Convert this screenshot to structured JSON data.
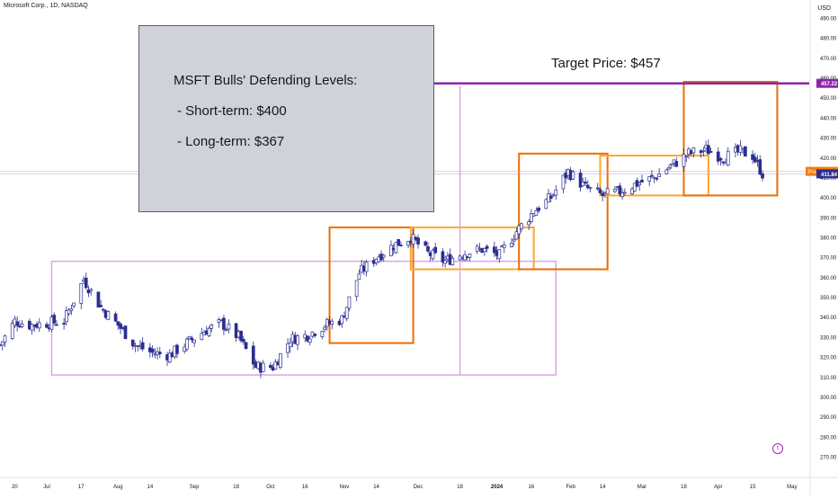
{
  "header": {
    "title": "Microsoft Corp., 1D, NASDAQ",
    "currency": "USD"
  },
  "note": {
    "title": "MSFT Bulls' Defending Levels:",
    "line1": "- Short-term: $400",
    "line2": "- Long-term: $367"
  },
  "target": {
    "label": "Target Price: $457"
  },
  "colors": {
    "up": "#ffffff",
    "down": "#2a2e8f",
    "wick": "#2a2e8f",
    "target_line": "#8e24aa",
    "box_dark_orange": "#ef6c00",
    "box_light_orange": "#ffa726",
    "box_pink": "#d9a6e6",
    "price_line_orange": "#f6a85c",
    "price_line_purple": "#b39ddb",
    "axis_text": "#131722"
  },
  "chart_data": {
    "type": "candlestick",
    "y_axis": {
      "ticks": [
        270,
        280,
        290,
        300,
        310,
        320,
        330,
        340,
        350,
        360,
        370,
        380,
        390,
        400,
        410,
        420,
        430,
        440,
        450,
        460,
        470,
        480,
        490
      ],
      "tick_labels": [
        "270.00",
        "280.00",
        "290.00",
        "300.00",
        "310.00",
        "320.00",
        "330.00",
        "340.00",
        "350.00",
        "360.00",
        "370.00",
        "380.00",
        "390.00",
        "400.00",
        "410.00",
        "420.00",
        "430.00",
        "440.00",
        "450.00",
        "460.00",
        "470.00",
        "480.00",
        "490.00"
      ],
      "range": [
        265,
        495
      ]
    },
    "x_axis": {
      "labels": [
        {
          "text": "20",
          "date": "2023-06-20"
        },
        {
          "text": "Jul",
          "date": "2023-07-03"
        },
        {
          "text": "17",
          "date": "2023-07-17"
        },
        {
          "text": "Aug",
          "date": "2023-08-01"
        },
        {
          "text": "14",
          "date": "2023-08-14"
        },
        {
          "text": "Sep",
          "date": "2023-09-01"
        },
        {
          "text": "18",
          "date": "2023-09-18"
        },
        {
          "text": "Oct",
          "date": "2023-10-02"
        },
        {
          "text": "16",
          "date": "2023-10-16"
        },
        {
          "text": "Nov",
          "date": "2023-11-01"
        },
        {
          "text": "14",
          "date": "2023-11-14"
        },
        {
          "text": "Dec",
          "date": "2023-12-01"
        },
        {
          "text": "18",
          "date": "2023-12-18"
        },
        {
          "text": "2024",
          "date": "2024-01-02"
        },
        {
          "text": "16",
          "date": "2024-01-16"
        },
        {
          "text": "Feb",
          "date": "2024-02-01"
        },
        {
          "text": "14",
          "date": "2024-02-14"
        },
        {
          "text": "Mar",
          "date": "2024-03-01"
        },
        {
          "text": "18",
          "date": "2024-03-18"
        },
        {
          "text": "Apr",
          "date": "2024-04-01"
        },
        {
          "text": "15",
          "date": "2024-04-15"
        },
        {
          "text": "May",
          "date": "2024-05-01"
        }
      ],
      "range": [
        "2023-06-14",
        "2024-05-08"
      ]
    },
    "close_path": [
      [
        "2023-06-14",
        326
      ],
      [
        "2023-06-20",
        338
      ],
      [
        "2023-06-26",
        336
      ],
      [
        "2023-07-03",
        337
      ],
      [
        "2023-07-10",
        338
      ],
      [
        "2023-07-18",
        359
      ],
      [
        "2023-07-25",
        345
      ],
      [
        "2023-08-01",
        336
      ],
      [
        "2023-08-08",
        326
      ],
      [
        "2023-08-15",
        322
      ],
      [
        "2023-08-22",
        321
      ],
      [
        "2023-08-29",
        327
      ],
      [
        "2023-09-05",
        333
      ],
      [
        "2023-09-12",
        337
      ],
      [
        "2023-09-19",
        330
      ],
      [
        "2023-09-26",
        315
      ],
      [
        "2023-10-03",
        315
      ],
      [
        "2023-10-10",
        329
      ],
      [
        "2023-10-17",
        331
      ],
      [
        "2023-10-24",
        336
      ],
      [
        "2023-10-31",
        339
      ],
      [
        "2023-11-07",
        362
      ],
      [
        "2023-11-14",
        370
      ],
      [
        "2023-11-21",
        376
      ],
      [
        "2023-11-28",
        380
      ],
      [
        "2023-12-05",
        372
      ],
      [
        "2023-12-12",
        368
      ],
      [
        "2023-12-19",
        372
      ],
      [
        "2023-12-27",
        374
      ],
      [
        "2024-01-03",
        371
      ],
      [
        "2024-01-10",
        383
      ],
      [
        "2024-01-17",
        393
      ],
      [
        "2024-01-24",
        400
      ],
      [
        "2024-01-31",
        413
      ],
      [
        "2024-02-07",
        405
      ],
      [
        "2024-02-14",
        401
      ],
      [
        "2024-02-21",
        403
      ],
      [
        "2024-02-28",
        407
      ],
      [
        "2024-03-06",
        410
      ],
      [
        "2024-03-13",
        416
      ],
      [
        "2024-03-20",
        422
      ],
      [
        "2024-03-27",
        424
      ],
      [
        "2024-04-03",
        420
      ],
      [
        "2024-04-10",
        423
      ],
      [
        "2024-04-15",
        421
      ],
      [
        "2024-04-19",
        411.84
      ]
    ],
    "horizontal_lines": [
      {
        "name": "target",
        "price": 457.22
      },
      {
        "name": "pre-market",
        "price": 413.08
      },
      {
        "name": "last",
        "price": 411.84
      }
    ],
    "price_tags": [
      {
        "text": "457.22",
        "price": 457.22,
        "color": "#8e24aa"
      },
      {
        "text": "413.08",
        "price": 413.08,
        "color": "#f57c00",
        "prefix": "Pre"
      },
      {
        "text": "411.84",
        "price": 411.84,
        "color": "#2a2e8f"
      }
    ],
    "boxes": [
      {
        "x0": "2023-07-05",
        "x1": "2024-01-26",
        "y0": 311,
        "y1": 368,
        "color": "pink"
      },
      {
        "x0": "2023-10-26",
        "x1": "2023-11-29",
        "y0": 327,
        "y1": 385,
        "color": "dark_orange"
      },
      {
        "x0": "2023-11-28",
        "x1": "2024-01-17",
        "y0": 364,
        "y1": 385,
        "color": "light_orange"
      },
      {
        "x0": "2024-01-11",
        "x1": "2024-02-16",
        "y0": 364,
        "y1": 422,
        "color": "dark_orange"
      },
      {
        "x0": "2024-02-13",
        "x1": "2024-03-28",
        "y0": 401,
        "y1": 421,
        "color": "light_orange"
      },
      {
        "x0": "2024-03-18",
        "x1": "2024-04-25",
        "y0": 401,
        "y1": 458,
        "color": "dark_orange"
      }
    ],
    "vertical_lines": [
      {
        "date": "2023-12-18",
        "y0": 311,
        "y1": 456
      }
    ],
    "title": "",
    "xlabel": "",
    "ylabel": ""
  }
}
